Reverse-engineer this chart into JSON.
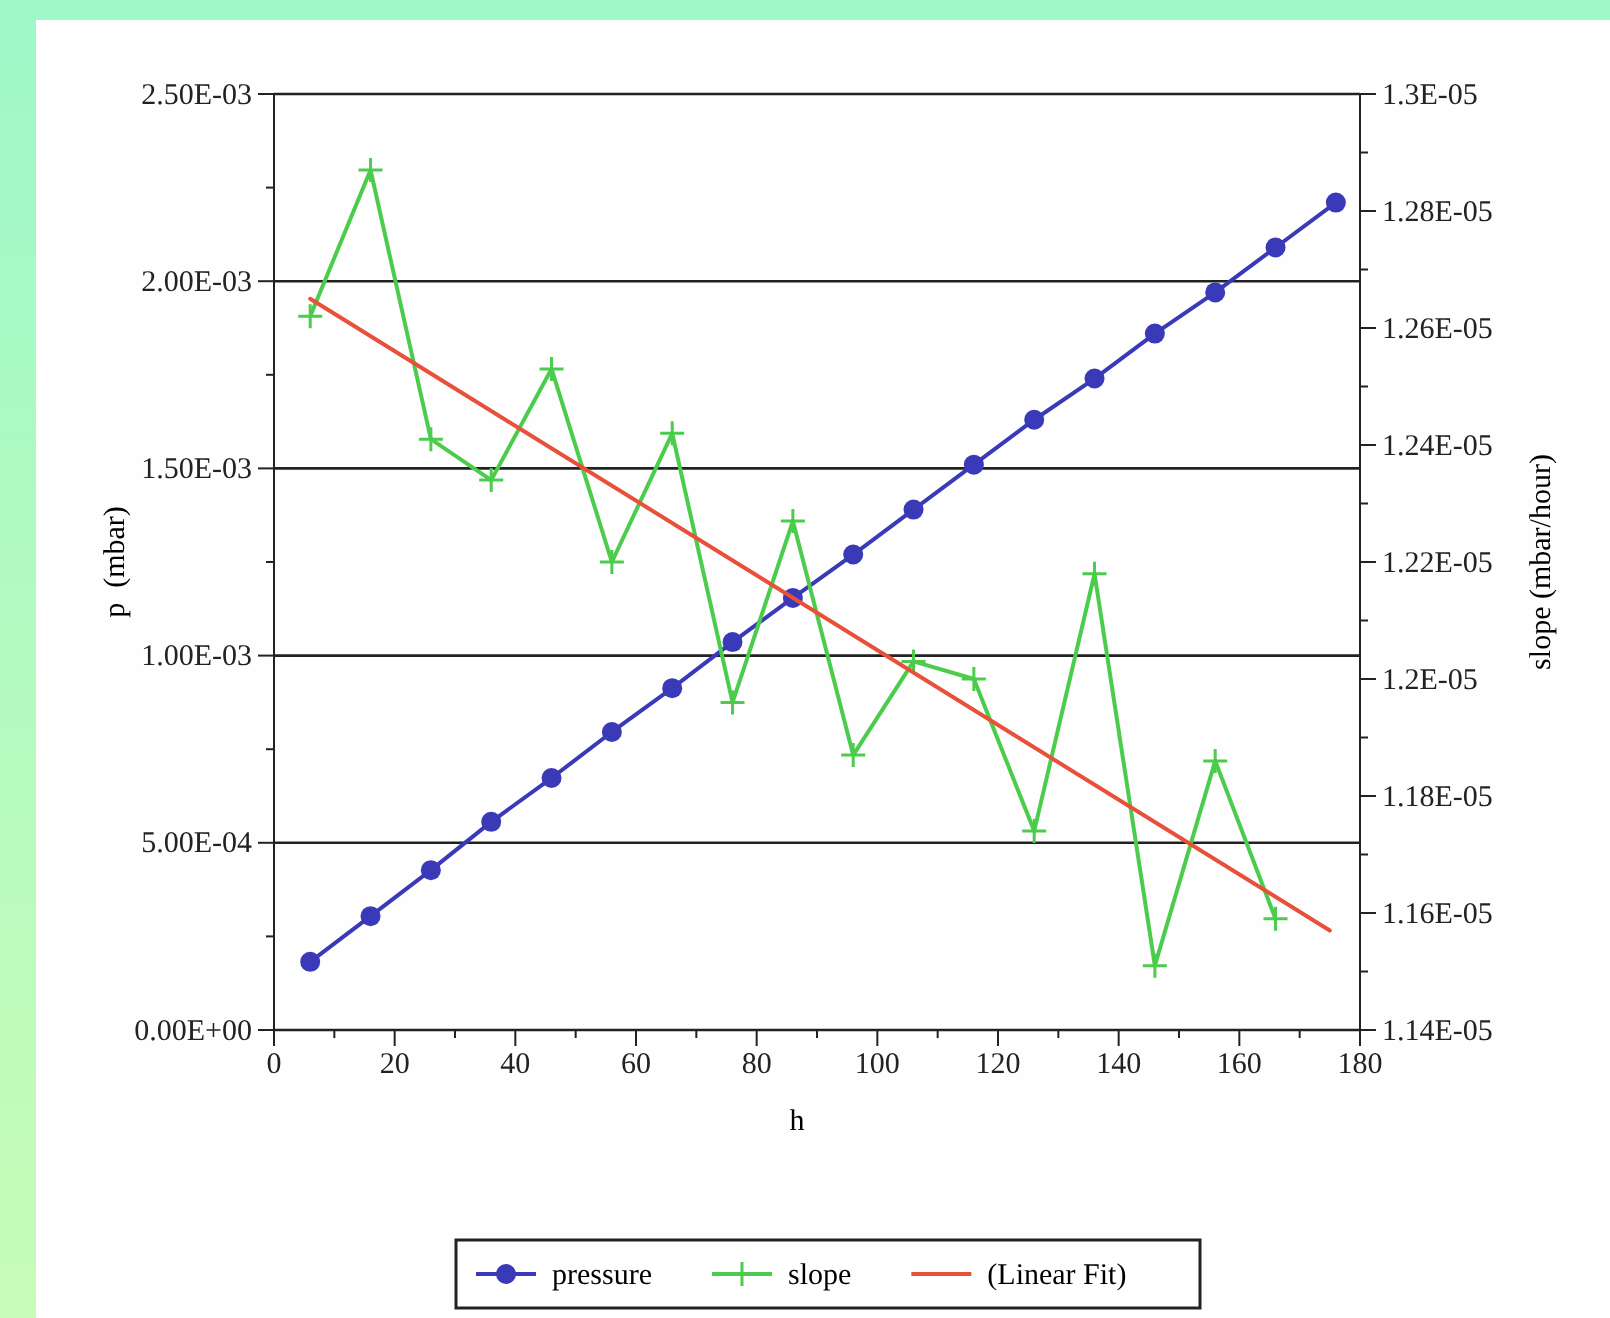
{
  "chart_data": {
    "type": "line",
    "xlabel": "h",
    "ylabel": "p  (mbar)",
    "y2label": "slope (mbar/hour)",
    "xlim": [
      0,
      180
    ],
    "xticks": [
      0,
      {
        "value": 10,
        "label": null
      },
      20,
      {
        "value": 30,
        "label": null
      },
      40,
      {
        "value": 50,
        "label": null
      },
      60,
      {
        "value": 70,
        "label": null
      },
      80,
      {
        "value": 90,
        "label": null
      },
      100,
      {
        "value": 110,
        "label": null
      },
      120,
      {
        "value": 130,
        "label": null
      },
      140,
      {
        "value": 150,
        "label": null
      },
      160,
      {
        "value": 170,
        "label": null
      },
      180
    ],
    "ylim": [
      0,
      0.0025
    ],
    "yticks": [
      {
        "value": 0,
        "label": "0.00E+00"
      },
      {
        "value": 0.00025,
        "label": null
      },
      {
        "value": 0.0005,
        "label": "5.00E-04"
      },
      {
        "value": 0.00075,
        "label": null
      },
      {
        "value": 0.001,
        "label": "1.00E-03"
      },
      {
        "value": 0.00125,
        "label": null
      },
      {
        "value": 0.0015,
        "label": "1.50E-03"
      },
      {
        "value": 0.00175,
        "label": null
      },
      {
        "value": 0.002,
        "label": "2.00E-03"
      },
      {
        "value": 0.00225,
        "label": null
      },
      {
        "value": 0.0025,
        "label": "2.50E-03"
      }
    ],
    "y2lim": [
      1.14e-05,
      1.3e-05
    ],
    "y2ticks": [
      {
        "value": 1.14e-05,
        "label": "1.14E-05"
      },
      {
        "value": 1.15e-05,
        "label": null
      },
      {
        "value": 1.16e-05,
        "label": "1.16E-05"
      },
      {
        "value": 1.17e-05,
        "label": null
      },
      {
        "value": 1.18e-05,
        "label": "1.18E-05"
      },
      {
        "value": 1.19e-05,
        "label": null
      },
      {
        "value": 1.2e-05,
        "label": "1.2E-05"
      },
      {
        "value": 1.21e-05,
        "label": null
      },
      {
        "value": 1.22e-05,
        "label": "1.22E-05"
      },
      {
        "value": 1.23e-05,
        "label": null
      },
      {
        "value": 1.24e-05,
        "label": "1.24E-05"
      },
      {
        "value": 1.25e-05,
        "label": null
      },
      {
        "value": 1.26e-05,
        "label": "1.26E-05"
      },
      {
        "value": 1.27e-05,
        "label": null
      },
      {
        "value": 1.28e-05,
        "label": "1.28E-05"
      },
      {
        "value": 1.29e-05,
        "label": null
      },
      {
        "value": 1.3e-05,
        "label": "1.3E-05"
      }
    ],
    "grid": "y",
    "legend": "bottom",
    "series": [
      {
        "name": "pressure",
        "color": "#3a3ab8",
        "marker": "circle",
        "x": [
          6,
          16,
          26,
          36,
          46,
          56,
          66,
          76,
          86,
          96,
          106,
          116,
          126,
          136,
          146,
          156,
          166,
          176
        ],
        "values": [
          0.000182,
          0.000304,
          0.000427,
          0.000556,
          0.000673,
          0.000796,
          0.000913,
          0.001036,
          0.001154,
          0.00127,
          0.00139,
          0.00151,
          0.00163,
          0.00174,
          0.00186,
          0.00197,
          0.00209,
          0.00221
        ]
      },
      {
        "name": "slope",
        "color": "#4ccc4c",
        "marker": "cross",
        "axis": "y2",
        "x": [
          6,
          16,
          26,
          36,
          46,
          56,
          66,
          76,
          86,
          96,
          106,
          116,
          126,
          136,
          146,
          156,
          166
        ],
        "values": [
          1.262e-05,
          1.287e-05,
          1.241e-05,
          1.234e-05,
          1.253e-05,
          1.22e-05,
          1.242e-05,
          1.196e-05,
          1.227e-05,
          1.187e-05,
          1.203e-05,
          1.2e-05,
          1.174e-05,
          1.218e-05,
          1.151e-05,
          1.186e-05,
          1.159e-05
        ]
      },
      {
        "name": "(Linear Fit)",
        "color": "#e8503a",
        "marker": "none",
        "axis": "y2",
        "x": [
          6,
          175
        ],
        "values": [
          1.265e-05,
          1.157e-05
        ]
      }
    ]
  }
}
